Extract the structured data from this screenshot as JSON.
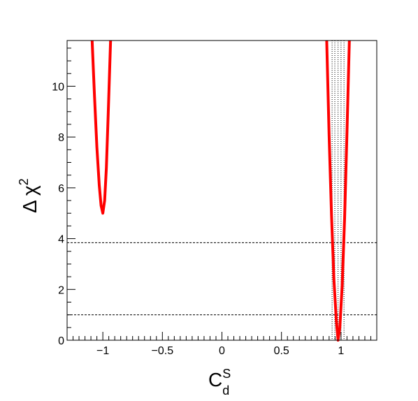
{
  "chart_data": {
    "type": "line",
    "xlabel": {
      "main": "C",
      "sup": "S",
      "sub": "d"
    },
    "ylabel": {
      "main": "Δ χ",
      "sup": "2"
    },
    "xlim": [
      -1.3,
      1.3
    ],
    "ylim": [
      0,
      11.8
    ],
    "xticks": [
      -1,
      -0.5,
      0,
      0.5,
      1
    ],
    "xtick_labels": [
      "−1",
      "−0.5",
      "0",
      "0.5",
      "1"
    ],
    "yticks": [
      0,
      2,
      4,
      6,
      8,
      10
    ],
    "ytick_labels": [
      "0",
      "2",
      "4",
      "6",
      "8",
      "10"
    ],
    "series": [
      {
        "color": "#ff0000",
        "segments": [
          {
            "x": [
              -1.09,
              -1.07,
              -1.05,
              -1.03,
              -1.015,
              -1.0,
              -0.985,
              -0.97,
              -0.955,
              -0.935
            ],
            "y": [
              11.8,
              9.6,
              7.6,
              6.1,
              5.3,
              5.0,
              5.5,
              6.8,
              8.9,
              11.8
            ]
          },
          {
            "x": [
              0.88,
              0.9,
              0.92,
              0.94,
              0.96,
              0.975,
              0.99,
              1.01,
              1.03,
              1.05,
              1.07
            ],
            "y": [
              11.8,
              8.1,
              4.9,
              2.4,
              0.8,
              0.0,
              0.5,
              2.2,
              4.8,
              8.2,
              11.8
            ]
          }
        ]
      }
    ],
    "hlines": [
      {
        "y": 1.0,
        "style": "dashed"
      },
      {
        "y": 3.84,
        "style": "dashed"
      }
    ],
    "vlines": [
      {
        "x": 0.925,
        "style": "dotted"
      },
      {
        "x": 0.948,
        "style": "dotted"
      },
      {
        "x": 0.975,
        "style": "dotted"
      },
      {
        "x": 1.0,
        "style": "dotted"
      },
      {
        "x": 1.025,
        "style": "dotted"
      }
    ]
  }
}
